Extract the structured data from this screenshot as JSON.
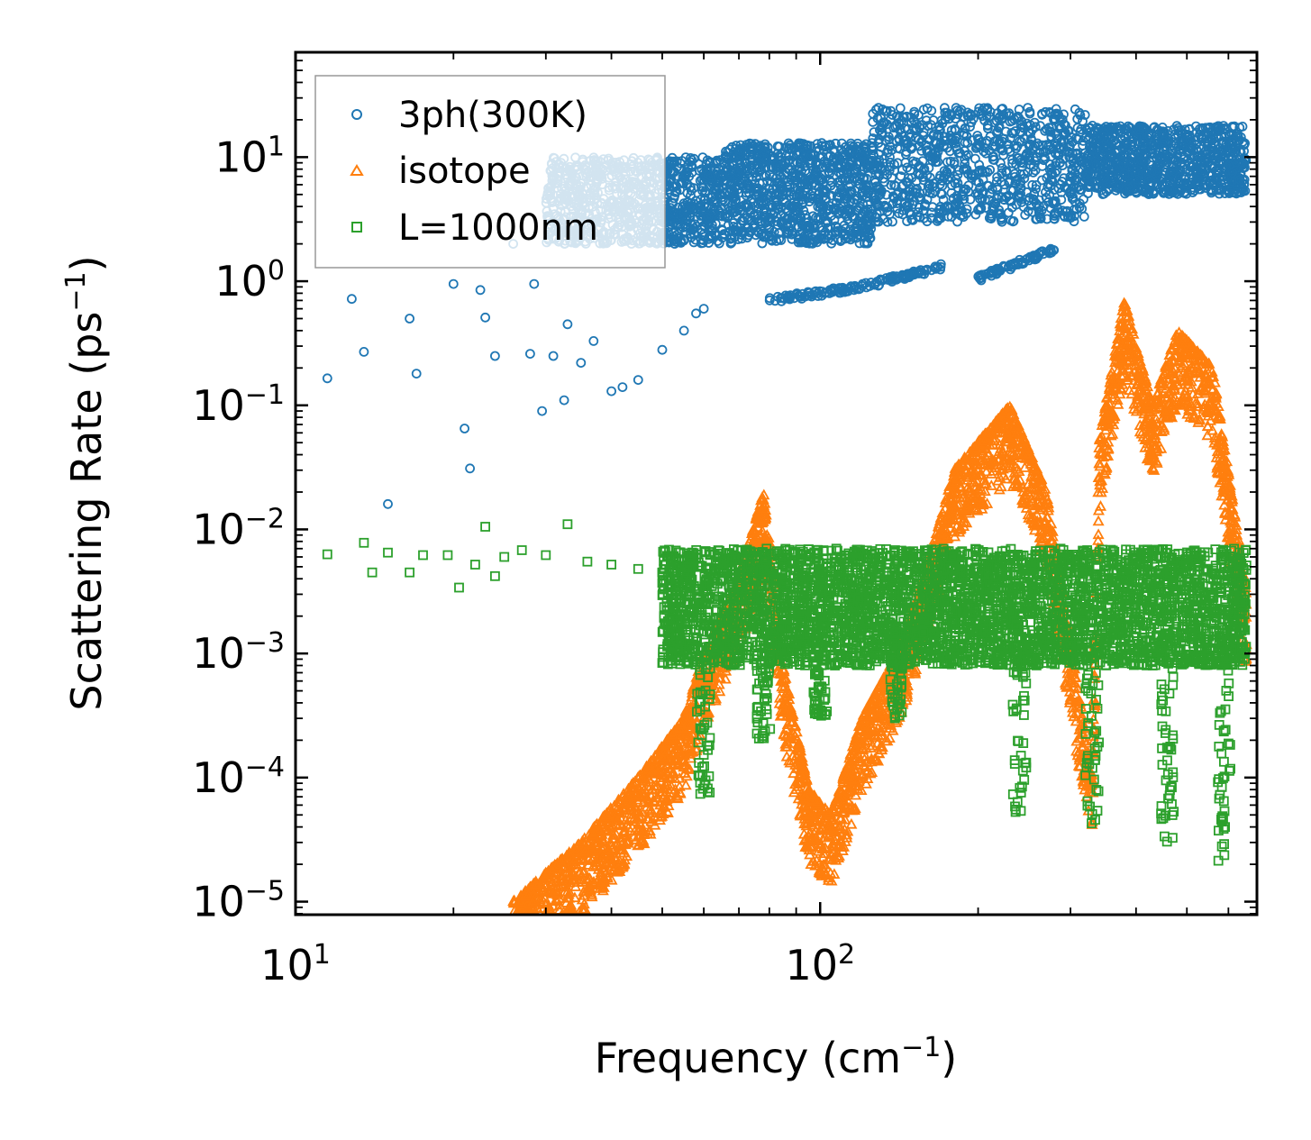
{
  "chart_data": {
    "type": "scatter",
    "title": "",
    "xlabel": "Frequency (cm",
    "xlabel_sup": "−1",
    "xlabel_end": ")",
    "ylabel": "Scattering Rate (ps",
    "ylabel_sup": "−1",
    "ylabel_end": ")",
    "xscale": "log",
    "yscale": "log",
    "xlim": [
      10,
      680
    ],
    "ylim": [
      7.85e-06,
      70
    ],
    "x_ticks": [
      {
        "value": 10,
        "base": "10",
        "exp": "1"
      },
      {
        "value": 100,
        "base": "10",
        "exp": "2"
      }
    ],
    "y_ticks": [
      {
        "value": 10,
        "base": "10",
        "exp": "1"
      },
      {
        "value": 1,
        "base": "10",
        "exp": "0"
      },
      {
        "value": 0.1,
        "base": "10",
        "exp": "−1"
      },
      {
        "value": 0.01,
        "base": "10",
        "exp": "−2"
      },
      {
        "value": 0.001,
        "base": "10",
        "exp": "−3"
      },
      {
        "value": 0.0001,
        "base": "10",
        "exp": "−4"
      },
      {
        "value": 1e-05,
        "base": "10",
        "exp": "−5"
      }
    ],
    "legend_position": "top-left",
    "series": [
      {
        "name": "3ph(300K)",
        "color": "#1f77b4",
        "marker": "circle",
        "sample_points": [
          [
            11.5,
            0.165
          ],
          [
            12.8,
            0.72
          ],
          [
            13.5,
            0.27
          ],
          [
            15,
            0.016
          ],
          [
            16.5,
            0.5
          ],
          [
            17,
            0.18
          ],
          [
            20,
            0.95
          ],
          [
            21,
            0.065
          ],
          [
            21.5,
            0.031
          ],
          [
            22.5,
            0.85
          ],
          [
            23,
            0.51
          ],
          [
            24,
            0.25
          ],
          [
            26,
            2.0
          ],
          [
            28,
            0.26
          ],
          [
            28.5,
            0.95
          ],
          [
            29.5,
            0.09
          ],
          [
            31,
            0.25
          ],
          [
            32.5,
            0.11
          ],
          [
            33,
            0.45
          ],
          [
            35,
            0.22
          ],
          [
            37,
            0.33
          ],
          [
            40,
            0.13
          ],
          [
            42,
            0.14
          ],
          [
            45,
            0.16
          ],
          [
            50,
            0.28
          ],
          [
            55,
            0.4
          ],
          [
            58,
            0.55
          ],
          [
            60,
            0.6
          ]
        ],
        "bands": [
          {
            "x": [
              30,
              65
            ],
            "y": [
              2,
              10
            ]
          },
          {
            "x": [
              65,
              125
            ],
            "y": [
              2,
              13
            ]
          },
          {
            "x": [
              125,
              320
            ],
            "y": [
              3,
              25
            ]
          },
          {
            "x": [
              320,
              650
            ],
            "y": [
              5,
              18
            ]
          }
        ],
        "lower_branches": [
          {
            "x": [
              80,
              120
            ],
            "y": [
              0.7,
              0.9
            ]
          },
          {
            "x": [
              120,
              170
            ],
            "y": [
              0.9,
              1.3
            ]
          },
          {
            "x": [
              200,
              280
            ],
            "y": [
              1.05,
              1.8
            ]
          }
        ]
      },
      {
        "name": "isotope",
        "color": "#ff7f0e",
        "marker": "triangle",
        "curve": [
          [
            26,
            1e-05
          ],
          [
            35,
            3e-05
          ],
          [
            45,
            0.0001
          ],
          [
            55,
            0.0003
          ],
          [
            60,
            0.001
          ],
          [
            70,
            0.004
          ],
          [
            78,
            0.02
          ],
          [
            85,
            0.0008
          ],
          [
            95,
            8e-05
          ],
          [
            105,
            5e-05
          ],
          [
            120,
            0.0003
          ],
          [
            140,
            0.001
          ],
          [
            160,
            0.005
          ],
          [
            180,
            0.03
          ],
          [
            230,
            0.1
          ],
          [
            270,
            0.02
          ],
          [
            330,
            0.0001
          ],
          [
            340,
            0.05
          ],
          [
            380,
            0.7
          ],
          [
            430,
            0.1
          ],
          [
            480,
            0.4
          ],
          [
            560,
            0.2
          ],
          [
            650,
            0.003
          ]
        ]
      },
      {
        "name": "L=1000nm",
        "color": "#2ca02c",
        "marker": "square",
        "sample_points": [
          [
            11.5,
            0.0063
          ],
          [
            13.5,
            0.0078
          ],
          [
            14,
            0.0045
          ],
          [
            15,
            0.0065
          ],
          [
            16.5,
            0.0045
          ],
          [
            17.5,
            0.0062
          ],
          [
            19.5,
            0.0062
          ],
          [
            20.5,
            0.0034
          ],
          [
            22,
            0.0052
          ],
          [
            23,
            0.0105
          ],
          [
            24,
            0.0042
          ],
          [
            25,
            0.006
          ],
          [
            27,
            0.0068
          ],
          [
            30,
            0.0062
          ],
          [
            33,
            0.011
          ],
          [
            36,
            0.0055
          ],
          [
            40,
            0.0052
          ],
          [
            45,
            0.0048
          ],
          [
            50,
            0.0045
          ]
        ],
        "band": {
          "x": [
            50,
            650
          ],
          "y": [
            0.0008,
            0.007
          ]
        },
        "dips": [
          [
            60,
            6e-05
          ],
          [
            78,
            0.0002
          ],
          [
            100,
            0.0003
          ],
          [
            140,
            0.0003
          ],
          [
            240,
            5e-05
          ],
          [
            330,
            3e-05
          ],
          [
            460,
            3e-05
          ],
          [
            590,
            2e-05
          ]
        ]
      }
    ]
  }
}
